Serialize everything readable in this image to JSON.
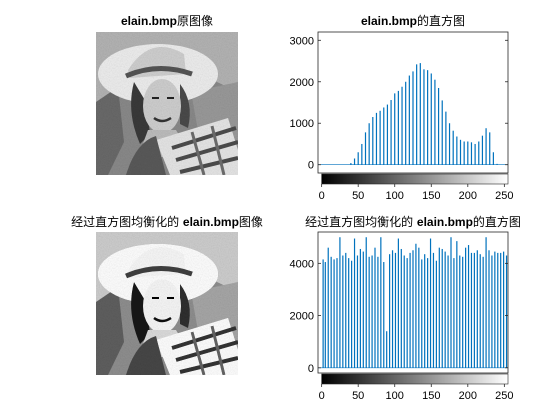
{
  "titles": {
    "tl_bold": "elain.bmp",
    "tl_rest": "原图像",
    "tr_bold": "elain.bmp",
    "tr_rest": "的直方图",
    "bl_pre": "经过直方图均衡化的",
    "bl_bold": "elain.bmp",
    "bl_rest": "图像",
    "br_pre": "经过直方图均衡化的",
    "br_bold": "elain.bmp",
    "br_rest": "的直方图"
  },
  "chart_data": [
    {
      "type": "bar",
      "title": "elain.bmp的直方图",
      "xlim": [
        -5,
        255
      ],
      "ylim": [
        -200,
        3200
      ],
      "xticks": [
        0,
        50,
        100,
        150,
        200,
        250
      ],
      "yticks": [
        0,
        1000,
        2000,
        3000
      ],
      "colorbar": "grayscale 0-255 below x axis",
      "x": [
        30,
        40,
        45,
        50,
        55,
        60,
        65,
        70,
        75,
        80,
        85,
        90,
        95,
        100,
        105,
        110,
        115,
        120,
        125,
        130,
        135,
        140,
        145,
        150,
        155,
        160,
        165,
        170,
        175,
        180,
        185,
        190,
        195,
        200,
        205,
        210,
        215,
        220,
        225,
        230,
        235,
        240,
        245
      ],
      "values": [
        0,
        40,
        150,
        300,
        500,
        780,
        1000,
        1150,
        1250,
        1300,
        1380,
        1450,
        1560,
        1720,
        1780,
        1880,
        2000,
        2150,
        2250,
        2420,
        2450,
        2300,
        2280,
        2200,
        2050,
        1850,
        1550,
        1280,
        1000,
        820,
        680,
        600,
        560,
        560,
        540,
        500,
        560,
        700,
        880,
        780,
        300,
        20,
        0
      ]
    },
    {
      "type": "bar",
      "title": "经过直方图均衡化的 elain.bmp的直方图",
      "xlim": [
        -5,
        255
      ],
      "ylim": [
        -200,
        5200
      ],
      "xticks": [
        0,
        50,
        100,
        150,
        200,
        250
      ],
      "yticks": [
        0,
        2000,
        4000
      ],
      "colorbar": "grayscale 0-255 below x axis",
      "x": [
        2,
        5,
        9,
        13,
        17,
        21,
        25,
        29,
        33,
        37,
        41,
        45,
        49,
        53,
        57,
        61,
        65,
        69,
        73,
        77,
        81,
        85,
        89,
        93,
        97,
        101,
        105,
        109,
        113,
        117,
        121,
        125,
        129,
        133,
        137,
        141,
        145,
        149,
        153,
        157,
        161,
        165,
        169,
        173,
        177,
        181,
        185,
        189,
        193,
        197,
        201,
        205,
        209,
        213,
        217,
        221,
        225,
        229,
        233,
        237,
        241,
        245,
        249,
        253
      ],
      "values": [
        4150,
        4050,
        4600,
        4250,
        4150,
        4200,
        5000,
        4300,
        4400,
        4200,
        4100,
        4950,
        4300,
        4550,
        4450,
        5000,
        4250,
        4300,
        4600,
        4250,
        5000,
        4050,
        1400,
        4350,
        4500,
        4400,
        4950,
        4550,
        4300,
        4200,
        4400,
        4500,
        4750,
        4600,
        4150,
        4350,
        4200,
        4950,
        4400,
        4100,
        4600,
        4550,
        4450,
        4300,
        5000,
        4200,
        4850,
        4300,
        4250,
        4600,
        4700,
        4400,
        4400,
        4500,
        4350,
        4250,
        5000,
        4500,
        4300,
        4450,
        4400,
        4400,
        4450,
        4300
      ]
    }
  ]
}
